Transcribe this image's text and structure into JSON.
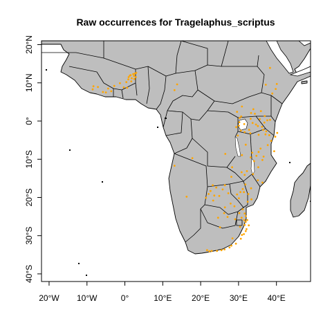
{
  "map": {
    "title": "Raw occurrences for Tragelaphus_scriptus",
    "x_ticks": [
      {
        "value": -20,
        "label": "20°W"
      },
      {
        "value": -10,
        "label": "10°W"
      },
      {
        "value": 0,
        "label": "0°"
      },
      {
        "value": 10,
        "label": "10°E"
      },
      {
        "value": 20,
        "label": "20°E"
      },
      {
        "value": 30,
        "label": "30°E"
      },
      {
        "value": 40,
        "label": "40°E"
      }
    ],
    "y_ticks": [
      {
        "value": 20,
        "label": "20°N"
      },
      {
        "value": 10,
        "label": "10°N"
      },
      {
        "value": 0,
        "label": "0°"
      },
      {
        "value": -10,
        "label": "10°S"
      },
      {
        "value": -20,
        "label": "20°S"
      },
      {
        "value": -30,
        "label": "30°S"
      },
      {
        "value": -40,
        "label": "40°S"
      }
    ],
    "xlim": [
      -22,
      49
    ],
    "ylim": [
      -42,
      21
    ],
    "land_color": "#bebebe",
    "point_color": "#ffa500",
    "occurrences": [
      [
        -8.5,
        8.3
      ],
      [
        -5.8,
        7.6
      ],
      [
        -5,
        7.5
      ],
      [
        -3.6,
        7.8
      ],
      [
        -2.8,
        9.2
      ],
      [
        -0.3,
        8.8
      ],
      [
        0.6,
        8.7
      ],
      [
        1,
        11.5
      ],
      [
        1.5,
        12
      ],
      [
        1.8,
        11.2
      ],
      [
        2.2,
        12.3
      ],
      [
        2.4,
        11.8
      ],
      [
        2.6,
        12.4
      ],
      [
        2.9,
        11.5
      ],
      [
        3,
        12.6
      ],
      [
        2.5,
        11
      ],
      [
        1.7,
        10.4
      ],
      [
        1.3,
        11.9
      ],
      [
        0.9,
        10.9
      ],
      [
        13.8,
        9.6
      ],
      [
        13.1,
        8.1
      ],
      [
        29.6,
        2.4
      ],
      [
        30.3,
        0.8
      ],
      [
        30.7,
        1.2
      ],
      [
        30.2,
        -0.3
      ],
      [
        30.1,
        -1.2
      ],
      [
        30.6,
        -2.5
      ],
      [
        29.8,
        -3.8
      ],
      [
        31.5,
        -0.8
      ],
      [
        33.2,
        0.6
      ],
      [
        33.7,
        -0.5
      ],
      [
        34.6,
        -0.9
      ],
      [
        35.1,
        -1.3
      ],
      [
        36.2,
        -1.5
      ],
      [
        36.5,
        -2.3
      ],
      [
        37.3,
        -2.7
      ],
      [
        36.8,
        -0.4
      ],
      [
        37.6,
        0.2
      ],
      [
        37.1,
        -3.5
      ],
      [
        38.1,
        -3.7
      ],
      [
        38.6,
        -5.2
      ],
      [
        37.7,
        -6.3
      ],
      [
        35.8,
        -7.2
      ],
      [
        33.6,
        -8.3
      ],
      [
        33.2,
        -9.5
      ],
      [
        34.7,
        -9.1
      ],
      [
        36.3,
        -10.2
      ],
      [
        35.3,
        -8.1
      ],
      [
        32.2,
        -13.1
      ],
      [
        30.8,
        -13.4
      ],
      [
        31.6,
        -14.1
      ],
      [
        33.8,
        -13.9
      ],
      [
        35.1,
        -15.5
      ],
      [
        36.3,
        -16.1
      ],
      [
        35.3,
        -3.6
      ],
      [
        35.6,
        0.5
      ],
      [
        33.3,
        2.1
      ],
      [
        34.3,
        1.9
      ],
      [
        36.9,
        1.3
      ],
      [
        38.3,
        0.3
      ],
      [
        35.9,
        2.6
      ],
      [
        38.9,
        7.2
      ],
      [
        39.8,
        8.4
      ],
      [
        38.3,
        13.9
      ],
      [
        40.1,
        9.7
      ],
      [
        37.2,
        9.5
      ],
      [
        26.5,
        -8.6
      ],
      [
        28.3,
        -12.1
      ],
      [
        28.1,
        -14.6
      ],
      [
        23.2,
        -16.8
      ],
      [
        24.1,
        -17.4
      ],
      [
        25.8,
        -17.9
      ],
      [
        27.3,
        -18.9
      ],
      [
        26.4,
        -16.8
      ],
      [
        24.9,
        -19.6
      ],
      [
        22.6,
        -18.3
      ],
      [
        23.6,
        -19.5
      ],
      [
        29.6,
        -19.2
      ],
      [
        31.4,
        -18.6
      ],
      [
        32.6,
        -19.1
      ],
      [
        33.4,
        -20.5
      ],
      [
        31.1,
        -17.8
      ],
      [
        30.5,
        -18.6
      ],
      [
        28.9,
        -22.3
      ],
      [
        31.1,
        -23.1
      ],
      [
        31.6,
        -24.2
      ],
      [
        31.9,
        -24.9
      ],
      [
        32.3,
        -25.9
      ],
      [
        31.9,
        -26.4
      ],
      [
        32.7,
        -27.3
      ],
      [
        32.1,
        -28.3
      ],
      [
        31.6,
        -27.2
      ],
      [
        30.8,
        -25.3
      ],
      [
        30.4,
        -27.7
      ],
      [
        31.4,
        -29.6
      ],
      [
        30.6,
        -30.8
      ],
      [
        29.3,
        -32.1
      ],
      [
        28.1,
        -32.6
      ],
      [
        27.6,
        -33.1
      ],
      [
        26.3,
        -33.6
      ],
      [
        25.5,
        -33.8
      ],
      [
        24.3,
        -34
      ],
      [
        22.9,
        -34
      ],
      [
        22.3,
        -34.1
      ],
      [
        21.7,
        -33.8
      ],
      [
        27.1,
        -25.1
      ],
      [
        26.4,
        -22.6
      ],
      [
        24.6,
        -25.3
      ],
      [
        25.1,
        -27.8
      ],
      [
        29.1,
        -25.7
      ],
      [
        30.2,
        -24.1
      ],
      [
        31.5,
        -25.9
      ],
      [
        30.9,
        -29.8
      ],
      [
        28.4,
        -30.7
      ],
      [
        31.9,
        -28.8
      ],
      [
        21.4,
        -20.1
      ],
      [
        22.1,
        -19.1
      ],
      [
        16.3,
        -19.8
      ],
      [
        13.1,
        -11.7
      ],
      [
        17.8,
        -9.7
      ],
      [
        23.3,
        -20.8
      ],
      [
        40.2,
        -3.1
      ],
      [
        39.7,
        -4.1
      ],
      [
        33.1,
        -3.2
      ],
      [
        31.9,
        -6.2
      ],
      [
        30.9,
        -8.9
      ],
      [
        34.1,
        -10.5
      ],
      [
        35.2,
        -12.1
      ],
      [
        39.4,
        -7.9
      ],
      [
        36.6,
        -9.3
      ],
      [
        29.4,
        -1.6
      ],
      [
        31.6,
        -2.9
      ],
      [
        32.8,
        -2.3
      ],
      [
        33.9,
        3.1
      ],
      [
        30.9,
        3.8
      ],
      [
        31.8,
        -16.6
      ],
      [
        33.3,
        -17.6
      ],
      [
        32.4,
        -21.1
      ],
      [
        30.1,
        -20.2
      ],
      [
        27.9,
        -21.6
      ],
      [
        26.2,
        -24.1
      ],
      [
        -7.1,
        8.9
      ],
      [
        -4.4,
        8.5
      ],
      [
        -1.3,
        9.9
      ],
      [
        0.4,
        10.2
      ],
      [
        -8.3,
        9.1
      ]
    ]
  }
}
